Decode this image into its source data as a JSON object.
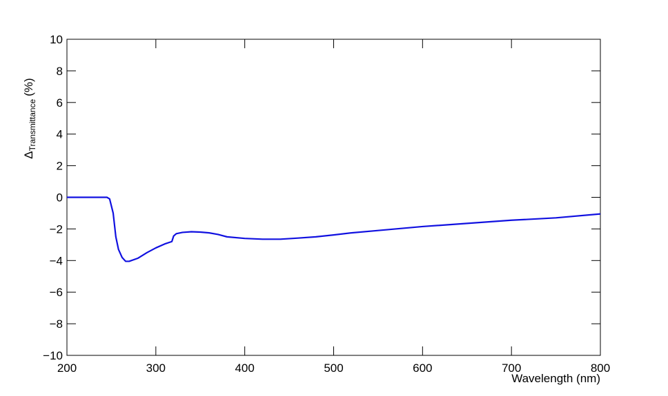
{
  "chart_data": {
    "type": "line",
    "xlabel": "Wavelength (nm)",
    "ylabel": {
      "symbol": "Δ",
      "subscript": "Transmittance",
      "unit": "(%)"
    },
    "x": [
      200,
      245,
      248,
      252,
      255,
      258,
      262,
      266,
      270,
      280,
      290,
      300,
      310,
      318,
      320,
      323,
      330,
      340,
      350,
      360,
      370,
      380,
      400,
      420,
      440,
      460,
      480,
      500,
      520,
      550,
      600,
      650,
      700,
      750,
      800
    ],
    "series": [
      {
        "name": "ΔTransmittance",
        "color": "#1010e0",
        "values": [
          0,
          0,
          -0.1,
          -1,
          -2.5,
          -3.3,
          -3.8,
          -4.05,
          -4.05,
          -3.85,
          -3.5,
          -3.2,
          -2.95,
          -2.8,
          -2.45,
          -2.3,
          -2.22,
          -2.18,
          -2.2,
          -2.25,
          -2.35,
          -2.5,
          -2.6,
          -2.65,
          -2.65,
          -2.58,
          -2.5,
          -2.38,
          -2.25,
          -2.1,
          -1.85,
          -1.65,
          -1.45,
          -1.3,
          -1.05
        ]
      }
    ],
    "xlim": [
      200,
      800
    ],
    "xticks": [
      200,
      300,
      400,
      500,
      600,
      700,
      800
    ],
    "ylim": [
      -10,
      10
    ],
    "yticks": [
      {
        "value": -10,
        "label": "−10"
      },
      {
        "value": -8,
        "label": "−8"
      },
      {
        "value": -6,
        "label": "−6"
      },
      {
        "value": -4,
        "label": "−4"
      },
      {
        "value": -2,
        "label": "−2"
      },
      0,
      2,
      4,
      6,
      8,
      10
    ],
    "grid": false
  }
}
